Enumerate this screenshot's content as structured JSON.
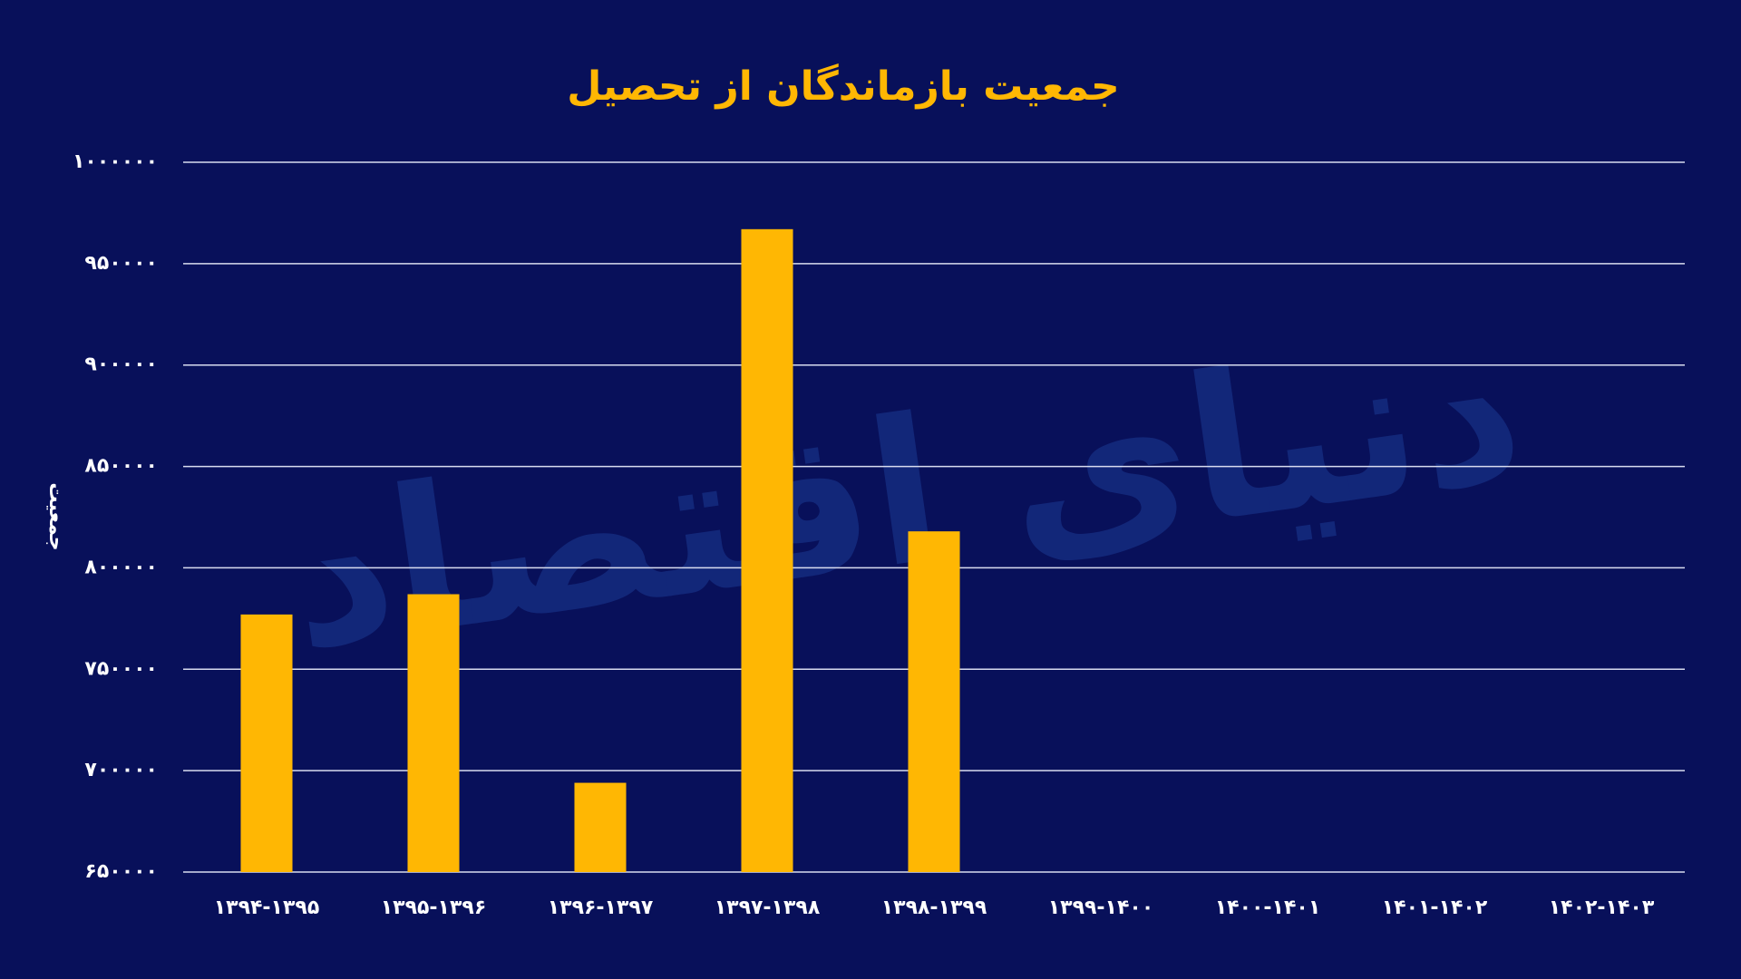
{
  "chart_data": {
    "type": "bar",
    "title": "جمعیت بازماندگان از تحصیل",
    "y_label": "جمعیت",
    "watermark": "دنیای اقتصاد",
    "categories": [
      "۱۳۹۴-۱۳۹۵",
      "۱۳۹۵-۱۳۹۶",
      "۱۳۹۶-۱۳۹۷",
      "۱۳۹۷-۱۳۹۸",
      "۱۳۹۸-۱۳۹۹",
      "۱۳۹۹-۱۴۰۰",
      "۱۴۰۰-۱۴۰۱",
      "۱۴۰۱-۱۴۰۲",
      "۱۴۰۲-۱۴۰۳"
    ],
    "values": [
      777000,
      787000,
      694000,
      967000,
      818000,
      null,
      null,
      null,
      null
    ],
    "color": "#ffb703",
    "ylim": [
      650000,
      1000000
    ],
    "yticks": [
      {
        "value": 650000,
        "label": "۶۵۰۰۰۰"
      },
      {
        "value": 700000,
        "label": "۷۰۰۰۰۰"
      },
      {
        "value": 750000,
        "label": "۷۵۰۰۰۰"
      },
      {
        "value": 800000,
        "label": "۸۰۰۰۰۰"
      },
      {
        "value": 850000,
        "label": "۸۵۰۰۰۰"
      },
      {
        "value": 900000,
        "label": "۹۰۰۰۰۰"
      },
      {
        "value": 950000,
        "label": "۹۵۰۰۰۰"
      },
      {
        "value": 1000000,
        "label": "۱۰۰۰۰۰۰"
      }
    ],
    "grid": true
  }
}
